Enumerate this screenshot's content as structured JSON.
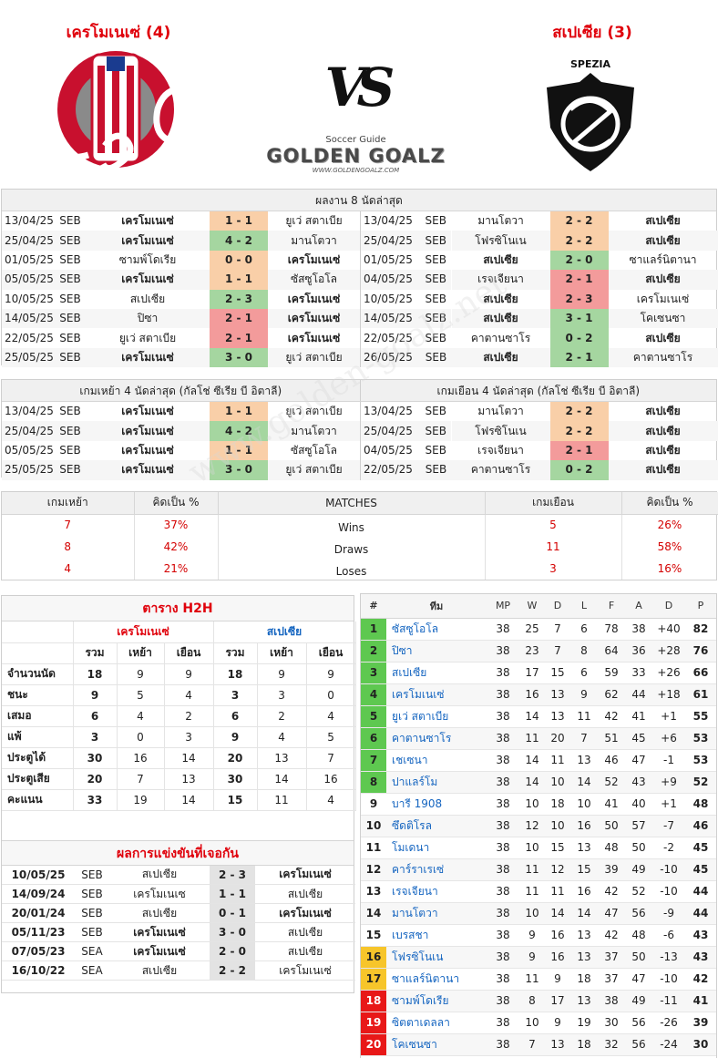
{
  "header": {
    "home_title": "เครโมเนเซ่ (4)",
    "away_title": "สเปเซีย (3)",
    "vs": "VS",
    "brand_small": "Soccer Guide",
    "brand": "GOLDEN GOALZ",
    "brand_url": "WWW.GOLDENGOALZ.COM",
    "away_logo_text": "SPEZIA"
  },
  "last8": {
    "title": "ผลงาน 8 นัดล่าสุด",
    "home": [
      [
        "13/04/25",
        "SEB",
        "เครโมเนเซ่",
        "1 - 1",
        "ยูเว่ สตาเบีย",
        "d",
        "h"
      ],
      [
        "25/04/25",
        "SEB",
        "เครโมเนเซ่",
        "4 - 2",
        "มานโตวา",
        "w",
        "h"
      ],
      [
        "01/05/25",
        "SEB",
        "ซามพ์โดเรีย",
        "0 - 0",
        "เครโมเนเซ่",
        "d",
        "a"
      ],
      [
        "05/05/25",
        "SEB",
        "เครโมเนเซ่",
        "1 - 1",
        "ซัสซูโอโล",
        "d",
        "h"
      ],
      [
        "10/05/25",
        "SEB",
        "สเปเซีย",
        "2 - 3",
        "เครโมเนเซ่",
        "w",
        "a"
      ],
      [
        "14/05/25",
        "SEB",
        "ปิซา",
        "2 - 1",
        "เครโมเนเซ่",
        "l",
        "a"
      ],
      [
        "22/05/25",
        "SEB",
        "ยูเว่ สตาเบีย",
        "2 - 1",
        "เครโมเนเซ่",
        "l",
        "a"
      ],
      [
        "25/05/25",
        "SEB",
        "เครโมเนเซ่",
        "3 - 0",
        "ยูเว่ สตาเบีย",
        "w",
        "h"
      ]
    ],
    "away": [
      [
        "13/04/25",
        "SEB",
        "มานโตวา",
        "2 - 2",
        "สเปเซีย",
        "d",
        "a"
      ],
      [
        "25/04/25",
        "SEB",
        "โฟรซิโนเน",
        "2 - 2",
        "สเปเซีย",
        "d",
        "a"
      ],
      [
        "01/05/25",
        "SEB",
        "สเปเซีย",
        "2 - 0",
        "ซาแลร์นิตานา",
        "w",
        "h"
      ],
      [
        "04/05/25",
        "SEB",
        "เรจเจียนา",
        "2 - 1",
        "สเปเซีย",
        "l",
        "a"
      ],
      [
        "10/05/25",
        "SEB",
        "สเปเซีย",
        "2 - 3",
        "เครโมเนเซ่",
        "l",
        "h"
      ],
      [
        "14/05/25",
        "SEB",
        "สเปเซีย",
        "3 - 1",
        "โคเซนซา",
        "w",
        "h"
      ],
      [
        "22/05/25",
        "SEB",
        "คาตานซาโร",
        "0 - 2",
        "สเปเซีย",
        "w",
        "a"
      ],
      [
        "26/05/25",
        "SEB",
        "สเปเซีย",
        "2 - 1",
        "คาตานซาโร",
        "w",
        "h"
      ]
    ]
  },
  "last4": {
    "home_title": "เกมเหย้า 4 นัดล่าสุด (กัลโช่ ซีเรีย บี อิตาลี)",
    "away_title": "เกมเยือน 4 นัดล่าสุด (กัลโช่ ซีเรีย บี อิตาลี)",
    "home": [
      [
        "13/04/25",
        "SEB",
        "เครโมเนเซ่",
        "1 - 1",
        "ยูเว่ สตาเบีย",
        "d",
        "h"
      ],
      [
        "25/04/25",
        "SEB",
        "เครโมเนเซ่",
        "4 - 2",
        "มานโตวา",
        "w",
        "h"
      ],
      [
        "05/05/25",
        "SEB",
        "เครโมเนเซ่",
        "1 - 1",
        "ซัสซูโอโล",
        "d",
        "h"
      ],
      [
        "25/05/25",
        "SEB",
        "เครโมเนเซ่",
        "3 - 0",
        "ยูเว่ สตาเบีย",
        "w",
        "h"
      ]
    ],
    "away": [
      [
        "13/04/25",
        "SEB",
        "มานโตวา",
        "2 - 2",
        "สเปเซีย",
        "d",
        "a"
      ],
      [
        "25/04/25",
        "SEB",
        "โฟรซิโนเน",
        "2 - 2",
        "สเปเซีย",
        "d",
        "a"
      ],
      [
        "04/05/25",
        "SEB",
        "เรจเจียนา",
        "2 - 1",
        "สเปเซีย",
        "l",
        "a"
      ],
      [
        "22/05/25",
        "SEB",
        "คาตานซาโร",
        "0 - 2",
        "สเปเซีย",
        "w",
        "a"
      ]
    ]
  },
  "summary": {
    "headers": [
      "เกมเหย้า",
      "คิดเป็น  %",
      "MATCHES",
      "เกมเยือน",
      "คิดเป็น  %"
    ],
    "rows": [
      [
        "7",
        "37%",
        "Wins",
        "5",
        "26%"
      ],
      [
        "8",
        "42%",
        "Draws",
        "11",
        "58%"
      ],
      [
        "4",
        "21%",
        "Loses",
        "3",
        "16%"
      ]
    ]
  },
  "h2h": {
    "title": "ตาราง H2H",
    "home": "เครโมเนเซ่",
    "away": "สเปเซีย",
    "cols": [
      "รวม",
      "เหย้า",
      "เยือน",
      "รวม",
      "เหย้า",
      "เยือน"
    ],
    "rows": [
      [
        "จำนวนนัด",
        "18",
        "9",
        "9",
        "18",
        "9",
        "9"
      ],
      [
        "ชนะ",
        "9",
        "5",
        "4",
        "3",
        "3",
        "0"
      ],
      [
        "เสมอ",
        "6",
        "4",
        "2",
        "6",
        "2",
        "4"
      ],
      [
        "แพ้",
        "3",
        "0",
        "3",
        "9",
        "4",
        "5"
      ],
      [
        "ประตูได้",
        "30",
        "16",
        "14",
        "20",
        "13",
        "7"
      ],
      [
        "ประตูเสีย",
        "20",
        "7",
        "13",
        "30",
        "14",
        "16"
      ],
      [
        "คะแนน",
        "33",
        "19",
        "14",
        "15",
        "11",
        "4"
      ]
    ]
  },
  "prev": {
    "title": "ผลการแข่งขันที่เจอกัน",
    "rows": [
      [
        "10/05/25",
        "SEB",
        "สเปเซีย",
        "2 - 3",
        "เครโมเนเซ่",
        "a"
      ],
      [
        "14/09/24",
        "SEB",
        "เครโมเนเซ",
        "1 - 1",
        "สเปเซีย",
        ""
      ],
      [
        "20/01/24",
        "SEB",
        "สเปเซีย",
        "0 - 1",
        "เครโมเนเซ่",
        "a"
      ],
      [
        "05/11/23",
        "SEB",
        "เครโมเนเซ่",
        "3 - 0",
        "สเปเซีย",
        "h"
      ],
      [
        "07/05/23",
        "SEA",
        "เครโมเนเซ่",
        "2 - 0",
        "สเปเซีย",
        "h"
      ],
      [
        "16/10/22",
        "SEA",
        "สเปเซีย",
        "2 - 2",
        "เครโมเนเซ่",
        ""
      ]
    ]
  },
  "league": {
    "headers": [
      "#",
      "ทีม",
      "MP",
      "W",
      "D",
      "L",
      "F",
      "A",
      "D",
      "P"
    ],
    "rows": [
      [
        "1",
        "ซัสซูโอโล",
        "38",
        "25",
        "7",
        "6",
        "78",
        "38",
        "+40",
        "82",
        "g"
      ],
      [
        "2",
        "ปิซา",
        "38",
        "23",
        "7",
        "8",
        "64",
        "36",
        "+28",
        "76",
        "g"
      ],
      [
        "3",
        "สเปเซีย",
        "38",
        "17",
        "15",
        "6",
        "59",
        "33",
        "+26",
        "66",
        "g"
      ],
      [
        "4",
        "เครโมเนเซ่",
        "38",
        "16",
        "13",
        "9",
        "62",
        "44",
        "+18",
        "61",
        "g"
      ],
      [
        "5",
        "ยูเว่ สตาเบีย",
        "38",
        "14",
        "13",
        "11",
        "42",
        "41",
        "+1",
        "55",
        "g"
      ],
      [
        "6",
        "คาตานซาโร",
        "38",
        "11",
        "20",
        "7",
        "51",
        "45",
        "+6",
        "53",
        "g"
      ],
      [
        "7",
        "เชเซนา",
        "38",
        "14",
        "11",
        "13",
        "46",
        "47",
        "-1",
        "53",
        "g"
      ],
      [
        "8",
        "ปาแลร์โม",
        "38",
        "14",
        "10",
        "14",
        "52",
        "43",
        "+9",
        "52",
        "g"
      ],
      [
        "9",
        "บารี 1908",
        "38",
        "10",
        "18",
        "10",
        "41",
        "40",
        "+1",
        "48",
        ""
      ],
      [
        "10",
        "ซึดติโรล",
        "38",
        "12",
        "10",
        "16",
        "50",
        "57",
        "-7",
        "46",
        ""
      ],
      [
        "11",
        "โมเดนา",
        "38",
        "10",
        "15",
        "13",
        "48",
        "50",
        "-2",
        "45",
        ""
      ],
      [
        "12",
        "คาร์ราเรเซ่",
        "38",
        "11",
        "12",
        "15",
        "39",
        "49",
        "-10",
        "45",
        ""
      ],
      [
        "13",
        "เรจเจียนา",
        "38",
        "11",
        "11",
        "16",
        "42",
        "52",
        "-10",
        "44",
        ""
      ],
      [
        "14",
        "มานโตวา",
        "38",
        "10",
        "14",
        "14",
        "47",
        "56",
        "-9",
        "44",
        ""
      ],
      [
        "15",
        "เบรสชา",
        "38",
        "9",
        "16",
        "13",
        "42",
        "48",
        "-6",
        "43",
        ""
      ],
      [
        "16",
        "โฟรซิโนเน",
        "38",
        "9",
        "16",
        "13",
        "37",
        "50",
        "-13",
        "43",
        "y"
      ],
      [
        "17",
        "ซาแลร์นิตานา",
        "38",
        "11",
        "9",
        "18",
        "37",
        "47",
        "-10",
        "42",
        "y"
      ],
      [
        "18",
        "ซามพ์โดเรีย",
        "38",
        "8",
        "17",
        "13",
        "38",
        "49",
        "-11",
        "41",
        "r"
      ],
      [
        "19",
        "ซิตตาเดลลา",
        "38",
        "10",
        "9",
        "19",
        "30",
        "56",
        "-26",
        "39",
        "r"
      ],
      [
        "20",
        "โคเซนซา",
        "38",
        "7",
        "13",
        "18",
        "32",
        "56",
        "-24",
        "30",
        "r"
      ]
    ]
  }
}
